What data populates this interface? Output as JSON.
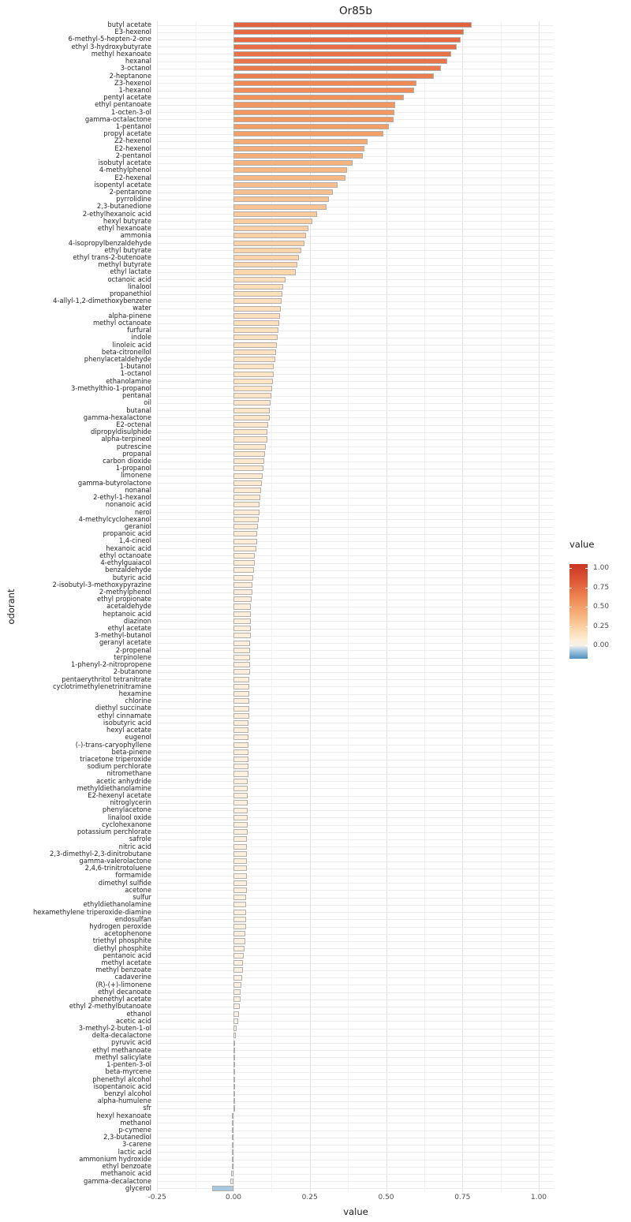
{
  "chart_data": {
    "type": "bar",
    "orientation": "horizontal",
    "title": "Or85b",
    "xlabel": "value",
    "ylabel": "odorant",
    "xlim": [
      -0.248,
      1.049
    ],
    "grid": true,
    "x_tick_values": [
      -0.25,
      0.0,
      0.25,
      0.5,
      0.75,
      1.0
    ],
    "x_tick_labels": [
      "-0.25",
      "0.00",
      "0.25",
      "0.50",
      "0.75",
      "1.00"
    ],
    "legend": {
      "title": "value",
      "position": "right",
      "tick_values": [
        1.0,
        0.75,
        0.5,
        0.25,
        0.0
      ],
      "tick_labels": [
        "1.00",
        "0.75",
        "0.50",
        "0.25",
        "0.00"
      ],
      "range": [
        1.05,
        -0.17
      ]
    },
    "gradient_stops": [
      {
        "v": 1.05,
        "c": "#c93522"
      },
      {
        "v": 0.8,
        "c": "#e25f3b"
      },
      {
        "v": 0.6,
        "c": "#ef8a55"
      },
      {
        "v": 0.4,
        "c": "#f6b17b"
      },
      {
        "v": 0.2,
        "c": "#fbd8ae"
      },
      {
        "v": 0.07,
        "c": "#fdeed8"
      },
      {
        "v": 0.0,
        "c": "#f7f1e7"
      },
      {
        "v": -0.04,
        "c": "#c3d9e9"
      },
      {
        "v": -0.17,
        "c": "#4b8ec0"
      }
    ],
    "categories": [
      "butyl acetate",
      "E3-hexenol",
      "6-methyl-5-hepten-2-one",
      "ethyl 3-hydroxybutyrate",
      "methyl hexanoate",
      "hexanal",
      "3-octanol",
      "2-heptanone",
      "Z3-hexenol",
      "1-hexanol",
      "pentyl acetate",
      "ethyl pentanoate",
      "1-octen-3-ol",
      "gamma-octalactone",
      "1-pentanol",
      "propyl acetate",
      "Z2-hexenol",
      "E2-hexenol",
      "2-pentanol",
      "isobutyl acetate",
      "4-methylphenol",
      "E2-hexenal",
      "isopentyl acetate",
      "2-pentanone",
      "pyrrolidine",
      "2,3-butanedione",
      "2-ethylhexanoic acid",
      "hexyl butyrate",
      "ethyl hexanoate",
      "ammonia",
      "4-isopropylbenzaldehyde",
      "ethyl butyrate",
      "ethyl trans-2-butenoate",
      "methyl butyrate",
      "ethyl lactate",
      "octanoic acid",
      "linalool",
      "propanethiol",
      "4-allyl-1,2-dimethoxybenzene",
      "water",
      "alpha-pinene",
      "methyl octanoate",
      "furfural",
      "indole",
      "linoleic acid",
      "beta-citronellol",
      "phenylacetaldehyde",
      "1-butanol",
      "1-octanol",
      "ethanolamine",
      "3-methylthio-1-propanol",
      "pentanal",
      "oil",
      "butanal",
      "gamma-hexalactone",
      "E2-octenal",
      "dipropyldisulphide",
      "alpha-terpineol",
      "putrescine",
      "propanal",
      "carbon dioxide",
      "1-propanol",
      "limonene",
      "gamma-butyrolactone",
      "nonanal",
      "2-ethyl-1-hexanol",
      "nonanoic acid",
      "nerol",
      "4-methylcyclohexanol",
      "geraniol",
      "propanoic acid",
      "1,4-cineol",
      "hexanoic acid",
      "ethyl octanoate",
      "4-ethylguaiacol",
      "benzaldehyde",
      "butyric acid",
      "2-isobutyl-3-methoxypyrazine",
      "2-methylphenol",
      "ethyl propionate",
      "acetaldehyde",
      "heptanoic acid",
      "diazinon",
      "ethyl acetate",
      "3-methyl-butanol",
      "geranyl acetate",
      "2-propenal",
      "terpinolene",
      "1-phenyl-2-nitropropene",
      "2-butanone",
      "pentaerythritol tetranitrate",
      "cyclotrimethylenetrinitramine",
      "hexamine",
      "chlorine",
      "diethyl succinate",
      "ethyl cinnamate",
      "isobutyric acid",
      "hexyl acetate",
      "eugenol",
      "(-)-trans-caryophyllene",
      "beta-pinene",
      "triacetone triperoxide",
      "sodium perchlorate",
      "nitromethane",
      "acetic anhydride",
      "methyldiethanolamine",
      "E2-hexenyl acetate",
      "nitroglycerin",
      "phenylacetone",
      "linalool oxide",
      "cyclohexanone",
      "potassium perchlorate",
      "safrole",
      "nitric acid",
      "2,3-dimethyl-2,3-dinitrobutane",
      "gamma-valerolactone",
      "2,4,6-trinitrotoluene",
      "formamide",
      "dimethyl sulfide",
      "acetone",
      "sulfur",
      "ethyldiethanolamine",
      "hexamethylene triperoxide-diamine",
      "endosulfan",
      "hydrogen peroxide",
      "acetophenone",
      "triethyl phosphite",
      "diethyl phosphite",
      "pentanoic acid",
      "methyl acetate",
      "methyl benzoate",
      "cadaverine",
      "(R)-(+)-limonene",
      "ethyl decanoate",
      "phenethyl acetate",
      "ethyl 2-methylbutanoate",
      "ethanol",
      "acetic acid",
      "3-methyl-2-buten-1-ol",
      "delta-decalactone",
      "pyruvic acid",
      "ethyl methanoate",
      "methyl salicylate",
      "1-penten-3-ol",
      "beta-myrcene",
      "phenethyl alcohol",
      "isopentanoic acid",
      "benzyl alcohol",
      "alpha-humulene",
      "sfr",
      "hexyl hexanoate",
      "methanol",
      "p-cymene",
      "2,3-butanediol",
      "3-carene",
      "lactic acid",
      "ammonium hydroxide",
      "ethyl benzoate",
      "methanoic acid",
      "gamma-decalactone",
      "glycerol"
    ],
    "values": [
      0.78,
      0.755,
      0.745,
      0.73,
      0.712,
      0.7,
      0.68,
      0.655,
      0.6,
      0.592,
      0.557,
      0.53,
      0.527,
      0.524,
      0.51,
      0.49,
      0.44,
      0.43,
      0.424,
      0.39,
      0.372,
      0.366,
      0.34,
      0.325,
      0.313,
      0.305,
      0.273,
      0.258,
      0.245,
      0.238,
      0.232,
      0.221,
      0.215,
      0.209,
      0.204,
      0.17,
      0.164,
      0.161,
      0.158,
      0.156,
      0.152,
      0.149,
      0.147,
      0.145,
      0.141,
      0.139,
      0.137,
      0.133,
      0.132,
      0.13,
      0.127,
      0.124,
      0.121,
      0.12,
      0.118,
      0.113,
      0.111,
      0.11,
      0.106,
      0.104,
      0.102,
      0.098,
      0.096,
      0.094,
      0.091,
      0.088,
      0.086,
      0.085,
      0.082,
      0.079,
      0.078,
      0.077,
      0.074,
      0.071,
      0.069,
      0.066,
      0.065,
      0.063,
      0.061,
      0.06,
      0.058,
      0.0575,
      0.057,
      0.0565,
      0.056,
      0.0555,
      0.055,
      0.0545,
      0.054,
      0.0535,
      0.053,
      0.0525,
      0.052,
      0.0515,
      0.051,
      0.0507,
      0.0504,
      0.05,
      0.0497,
      0.0494,
      0.049,
      0.0487,
      0.0484,
      0.048,
      0.0477,
      0.0474,
      0.047,
      0.0467,
      0.0464,
      0.046,
      0.0457,
      0.0454,
      0.045,
      0.0447,
      0.0444,
      0.044,
      0.0437,
      0.0434,
      0.043,
      0.0427,
      0.0424,
      0.042,
      0.0417,
      0.0414,
      0.041,
      0.04,
      0.038,
      0.036,
      0.034,
      0.032,
      0.03,
      0.028,
      0.026,
      0.024,
      0.022,
      0.02,
      0.018,
      0.016,
      0.011,
      0.009,
      0.006,
      0.005,
      0.004,
      0.0035,
      0.003,
      0.0025,
      0.002,
      0.0015,
      0.001,
      0.0005,
      -0.001,
      -0.0015,
      -0.002,
      -0.0025,
      -0.003,
      -0.004,
      -0.005,
      -0.006,
      -0.008,
      -0.01,
      -0.07
    ]
  }
}
